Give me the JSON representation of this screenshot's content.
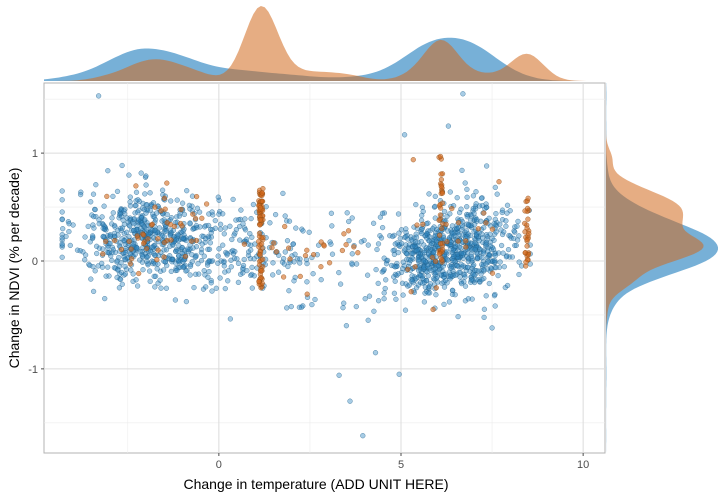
{
  "chart_data": {
    "type": "scatter",
    "title": "",
    "xlabel": "Change in temperature (ADD UNIT HERE)",
    "ylabel": "Change in NDVI (% per decade)",
    "xlim": [
      -4.8,
      10.6
    ],
    "ylim": [
      -1.78,
      1.65
    ],
    "xticks": [
      0,
      5,
      10
    ],
    "yticks": [
      -1,
      0,
      1
    ],
    "grid": true,
    "legend": "none",
    "marginal_density": {
      "top": true,
      "right": true
    },
    "series": [
      {
        "color": "#2E86C1",
        "point_count": "approx. 1500",
        "clusters": [
          {
            "x_center": -2.0,
            "x_spread": 1.3,
            "y_center": 0.22,
            "y_spread": 0.22,
            "count": 560
          },
          {
            "x_center": 0.5,
            "x_spread": 1.2,
            "y_center": 0.12,
            "y_spread": 0.2,
            "count": 180
          },
          {
            "x_center": 5.7,
            "x_spread": 0.8,
            "y_center": 0.02,
            "y_spread": 0.17,
            "count": 330
          },
          {
            "x_center": 6.9,
            "x_spread": 0.9,
            "y_center": 0.15,
            "y_spread": 0.22,
            "count": 430
          }
        ],
        "outliers": [
          {
            "x": -3.3,
            "y": 1.53
          },
          {
            "x": 6.7,
            "y": 1.55
          },
          {
            "x": 3.3,
            "y": -1.06
          },
          {
            "x": 3.6,
            "y": -1.3
          },
          {
            "x": 3.95,
            "y": -1.62
          },
          {
            "x": 4.3,
            "y": -0.85
          },
          {
            "x": 4.95,
            "y": -1.05
          },
          {
            "x": 4.1,
            "y": -0.55
          },
          {
            "x": 3.5,
            "y": -0.6
          },
          {
            "x": 5.1,
            "y": 1.17
          },
          {
            "x": 7.5,
            "y": -0.62
          },
          {
            "x": 6.3,
            "y": 1.25
          }
        ]
      },
      {
        "color": "#D2691E",
        "point_count": "approx. 240",
        "columns": [
          {
            "x": 1.15,
            "y_min": -0.28,
            "y_max": 0.68,
            "count": 80
          },
          {
            "x": 6.1,
            "y_min": -0.1,
            "y_max": 0.98,
            "count": 35
          },
          {
            "x": 8.45,
            "y_min": -0.05,
            "y_max": 0.62,
            "count": 30
          }
        ],
        "scattered_count": 95
      }
    ]
  }
}
